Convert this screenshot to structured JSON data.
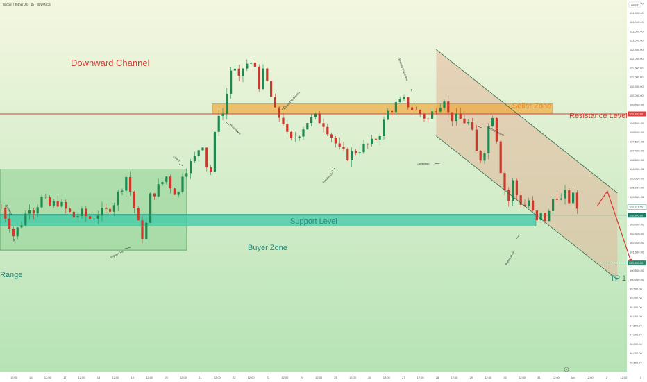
{
  "header": {
    "symbol_title": "Bitcoin / TetherUS · 1h · BINANCE"
  },
  "currency": "USDT",
  "colors": {
    "bg_top": "#f4f7e0",
    "bg_bottom": "#b6e3b6",
    "up": "#1e8a52",
    "down": "#c73a2c",
    "resistance": "#d94040",
    "seller_zone": "#f0a432",
    "buyer_zone": "#3ec9a8",
    "range_box": "#7fcc85",
    "channel": "#2e6b50",
    "channel_fill": "#e2b79a",
    "title_red": "#d24037",
    "teal_text": "#22897b"
  },
  "labels": {
    "downward_channel": "Downward Channel",
    "seller_zone": "Seller Zone",
    "resistance_level": "Resistance Level",
    "support_level": "Support Level",
    "buyer_zone": "Buyer Zone",
    "range": "Range",
    "tp1": "TP 1",
    "breakout_left": "Breakout",
    "impulse_up_1": "Impulse Up",
    "exited": "Exited",
    "breakdown": "Breakdown",
    "entered_to_decline": "Entered To Decline",
    "impulse_up_2": "Impulse Up",
    "entered_to_decline_2": "Entered To Decline",
    "correction": "Correction",
    "turned_around": "Turned Around",
    "rebound_up": "Rebound Up"
  },
  "price_tags": {
    "resistance": "109,000.00",
    "last_price": "103,937.50",
    "support": "103,500.00",
    "tp": "100,900.00"
  },
  "chart_data": {
    "type": "candlestick",
    "x_ticks": [
      "12:00",
      "16",
      "12:00",
      "17",
      "12:00",
      "18",
      "12:00",
      "19",
      "12:00",
      "20",
      "12:00",
      "21",
      "12:00",
      "22",
      "12:00",
      "23",
      "12:00",
      "24",
      "12:00",
      "25",
      "12:00",
      "26",
      "12:00",
      "27",
      "12:00",
      "28",
      "12:00",
      "29",
      "12:00",
      "30",
      "12:00",
      "31",
      "12:00",
      "Jun",
      "12:00",
      "2",
      "12:00",
      "3"
    ],
    "y_ticks": [
      "115,000.00",
      "114,500.00",
      "114,000.00",
      "113,500.00",
      "113,000.00",
      "112,500.00",
      "112,000.00",
      "111,500.00",
      "111,000.00",
      "110,500.00",
      "110,000.00",
      "109,500.00",
      "109,000.00",
      "108,500.00",
      "108,000.00",
      "107,500.00",
      "107,000.00",
      "106,500.00",
      "106,000.00",
      "105,500.00",
      "105,000.00",
      "104,500.00",
      "104,000.00",
      "103,500.00",
      "103,000.00",
      "102,500.00",
      "102,000.00",
      "101,500.00",
      "101,000.00",
      "100,500.00",
      "100,000.00",
      "99,500.00",
      "99,000.00",
      "98,500.00",
      "98,000.00",
      "97,500.00",
      "97,000.00",
      "96,500.00",
      "96,000.00",
      "95,500.00"
    ],
    "y_range": [
      95300,
      115400
    ],
    "resistance_level": 109000,
    "seller_zone": [
      109000,
      109550
    ],
    "support_level": 103500,
    "buyer_zone": [
      102900,
      103550
    ],
    "range_box": [
      101600,
      106000
    ],
    "tp1": 100900,
    "channel_upper": [
      [
        108.0,
        112.5
      ],
      [
        153.0,
        104.7
      ]
    ],
    "channel_lower": [
      [
        108.0,
        107.8
      ],
      [
        153.0,
        100.0
      ]
    ],
    "projection": [
      [
        148.0,
        104.0
      ],
      [
        150.5,
        104.8
      ],
      [
        156.5,
        100.9
      ]
    ],
    "close_path": [
      [
        0,
        103.9
      ],
      [
        2,
        103.0
      ],
      [
        3,
        102.4
      ],
      [
        5,
        103.1
      ],
      [
        7,
        104.0
      ],
      [
        8,
        103.8
      ],
      [
        10,
        104.4
      ],
      [
        12,
        104.0
      ],
      [
        14,
        104.2
      ],
      [
        16,
        103.8
      ],
      [
        18,
        103.4
      ],
      [
        20,
        103.6
      ],
      [
        22,
        103.3
      ],
      [
        24,
        103.6
      ],
      [
        26,
        103.7
      ],
      [
        28,
        104.2
      ],
      [
        30,
        105.1
      ],
      [
        31,
        105.6
      ],
      [
        32,
        104.8
      ],
      [
        33,
        103.9
      ],
      [
        34,
        103.0
      ],
      [
        35,
        102.4
      ],
      [
        36,
        103.0
      ],
      [
        37,
        104.5
      ],
      [
        39,
        105.0
      ],
      [
        41,
        105.6
      ],
      [
        42,
        105.1
      ],
      [
        43,
        104.8
      ],
      [
        44,
        104.7
      ],
      [
        45,
        105.8
      ],
      [
        47,
        106.3
      ],
      [
        48,
        106.6
      ],
      [
        49,
        107.1
      ],
      [
        50,
        107.4
      ],
      [
        51,
        106.2
      ],
      [
        52,
        105.9
      ],
      [
        53,
        107.8
      ],
      [
        54,
        109.1
      ],
      [
        55,
        109.0
      ],
      [
        56,
        110.1
      ],
      [
        57,
        111.4
      ],
      [
        58,
        111.3
      ],
      [
        59,
        110.8
      ],
      [
        60,
        111.5
      ],
      [
        61,
        111.7
      ],
      [
        63,
        111.6
      ],
      [
        64,
        110.6
      ],
      [
        65,
        111.2
      ],
      [
        66,
        110.7
      ],
      [
        67,
        109.9
      ],
      [
        68,
        109.1
      ],
      [
        70,
        108.6
      ],
      [
        71,
        107.8
      ],
      [
        72,
        107.5
      ],
      [
        74,
        108.0
      ],
      [
        76,
        108.6
      ],
      [
        78,
        108.8
      ],
      [
        80,
        108.5
      ],
      [
        82,
        107.8
      ],
      [
        84,
        107.0
      ],
      [
        86,
        106.7
      ],
      [
        88,
        107.0
      ],
      [
        90,
        107.2
      ],
      [
        92,
        107.4
      ],
      [
        94,
        108.0
      ],
      [
        96,
        109.1
      ],
      [
        98,
        109.5
      ],
      [
        100,
        109.7
      ],
      [
        102,
        109.3
      ],
      [
        104,
        109.0
      ],
      [
        106,
        108.7
      ],
      [
        108,
        109.4
      ],
      [
        109,
        109.6
      ],
      [
        110,
        109.9
      ],
      [
        111,
        109.0
      ],
      [
        112,
        108.8
      ],
      [
        114,
        108.7
      ],
      [
        116,
        108.5
      ],
      [
        117,
        107.9
      ],
      [
        118,
        106.9
      ],
      [
        119,
        106.6
      ],
      [
        120,
        107.1
      ],
      [
        121,
        108.3
      ],
      [
        122,
        109.0
      ],
      [
        123,
        107.7
      ],
      [
        124,
        106.0
      ],
      [
        125,
        104.9
      ],
      [
        126,
        104.3
      ],
      [
        127,
        105.3
      ],
      [
        128,
        104.6
      ],
      [
        129,
        104.2
      ],
      [
        130,
        104.0
      ],
      [
        131,
        104.3
      ],
      [
        132,
        103.6
      ],
      [
        133,
        103.1
      ],
      [
        134,
        103.5
      ],
      [
        135,
        103.3
      ],
      [
        136,
        103.6
      ],
      [
        137,
        104.4
      ],
      [
        138,
        104.6
      ],
      [
        139,
        104.3
      ],
      [
        140,
        104.6
      ],
      [
        141,
        104.3
      ],
      [
        142,
        104.5
      ],
      [
        143,
        103.9
      ]
    ]
  }
}
